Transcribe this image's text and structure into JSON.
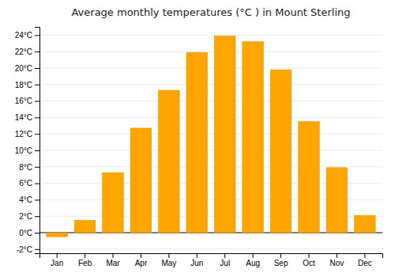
{
  "chart_data": {
    "type": "bar",
    "title": "Average monthly temperatures (°C ) in Mount Sterling",
    "categories": [
      "Jan",
      "Feb",
      "Mar",
      "Apr",
      "May",
      "Jun",
      "Jul",
      "Aug",
      "Sep",
      "Oct",
      "Nov",
      "Dec"
    ],
    "values": [
      -0.5,
      1.5,
      7.3,
      12.7,
      17.3,
      21.9,
      23.9,
      23.2,
      19.8,
      13.5,
      7.9,
      2.1
    ],
    "color": "#FFA500",
    "ylim": [
      -2.5,
      25
    ],
    "yticks": [
      {
        "value": -2,
        "label": "-2°C"
      },
      {
        "value": 0,
        "label": "0°C"
      },
      {
        "value": 2,
        "label": "2°C"
      },
      {
        "value": 4,
        "label": "4°C"
      },
      {
        "value": 6,
        "label": "6°C"
      },
      {
        "value": 8,
        "label": "8°C"
      },
      {
        "value": 10,
        "label": "10°C"
      },
      {
        "value": 12,
        "label": "12°C"
      },
      {
        "value": 14,
        "label": "14°C"
      },
      {
        "value": 16,
        "label": "16°C"
      },
      {
        "value": 18,
        "label": "18°C"
      },
      {
        "value": 20,
        "label": "20°C"
      },
      {
        "value": 22,
        "label": "22°C"
      },
      {
        "value": 24,
        "label": "24°C"
      }
    ],
    "grid": true
  }
}
